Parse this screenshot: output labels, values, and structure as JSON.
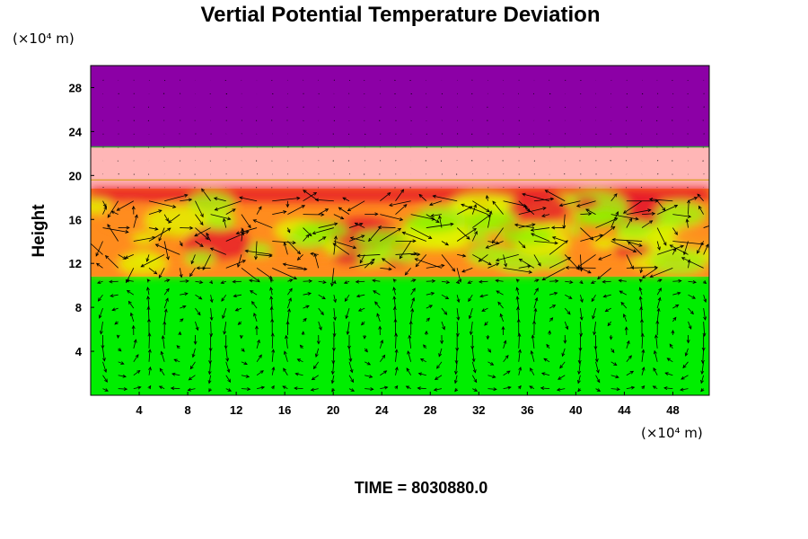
{
  "chart_data": {
    "type": "heatmap",
    "title": "Vertial Potential Temperature Deviation",
    "ylabel": "Height",
    "y_unit": "(×10⁴ m)",
    "x_unit": "(×10⁴ m)",
    "xlim": [
      0,
      51
    ],
    "ylim": [
      0,
      30
    ],
    "x_ticks": [
      4,
      8,
      12,
      16,
      20,
      24,
      28,
      32,
      36,
      40,
      44,
      48
    ],
    "y_ticks": [
      4,
      8,
      12,
      16,
      20,
      24,
      28
    ],
    "colors": {
      "upper": "#8c00a6",
      "pink": "#ffb6b6",
      "red": "#e8202a",
      "orange": "#ff8c1e",
      "yellow": "#e4f000",
      "green": "#00ee00",
      "vector": "#000000"
    },
    "layers": [
      {
        "name": "purple",
        "y": [
          22.6,
          30
        ]
      },
      {
        "name": "pink",
        "y": [
          18.8,
          22.6
        ]
      },
      {
        "name": "turbulent",
        "y": [
          10.8,
          18.8
        ]
      },
      {
        "name": "green",
        "y": [
          0,
          10.8
        ]
      }
    ],
    "has_velocity_vectors": true,
    "time_label": "TIME = 8030880.0"
  }
}
